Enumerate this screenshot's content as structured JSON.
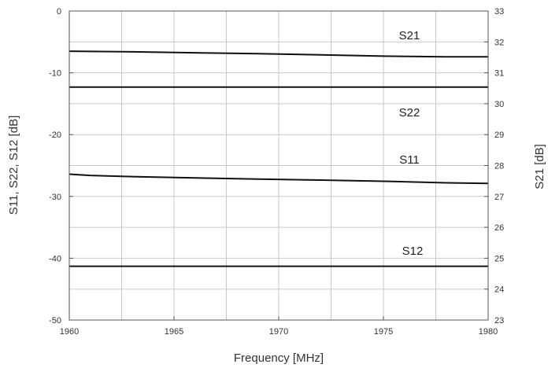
{
  "chart_data": {
    "type": "line",
    "xlabel": "Frequency [MHz]",
    "ylabel_left": "S11, S22, S12 [dB]",
    "ylabel_right": "S21 [dB]",
    "xlim": [
      1960,
      1980
    ],
    "ylim_left": [
      -50,
      0
    ],
    "ylim_right": [
      23,
      33
    ],
    "x_ticks": [
      1960,
      1965,
      1970,
      1975,
      1980
    ],
    "y_left_ticks": [
      0,
      -10,
      -20,
      -30,
      -40,
      -50
    ],
    "y_right_ticks": [
      33,
      32,
      31,
      30,
      29,
      28,
      27,
      26,
      25,
      24,
      23
    ],
    "x_minor_step": 2.5,
    "y_left_minor_step": 5,
    "grid": true,
    "series": [
      {
        "name": "S21",
        "axis": "right",
        "x": [
          1960,
          1963,
          1966,
          1969,
          1972,
          1975,
          1978,
          1980
        ],
        "y": [
          31.7,
          31.68,
          31.65,
          31.62,
          31.58,
          31.54,
          31.52,
          31.52
        ]
      },
      {
        "name": "S22",
        "axis": "left",
        "x": [
          1960,
          1965,
          1970,
          1975,
          1980
        ],
        "y": [
          -12.3,
          -12.3,
          -12.3,
          -12.3,
          -12.3
        ]
      },
      {
        "name": "S11",
        "axis": "left",
        "x": [
          1960,
          1961,
          1963,
          1966,
          1969,
          1972,
          1975,
          1978,
          1980
        ],
        "y": [
          -26.4,
          -26.6,
          -26.8,
          -27.0,
          -27.2,
          -27.35,
          -27.55,
          -27.8,
          -27.9
        ]
      },
      {
        "name": "S12",
        "axis": "left",
        "x": [
          1960,
          1965,
          1970,
          1975,
          1980
        ],
        "y": [
          -41.3,
          -41.3,
          -41.3,
          -41.3,
          -41.3
        ]
      }
    ]
  }
}
